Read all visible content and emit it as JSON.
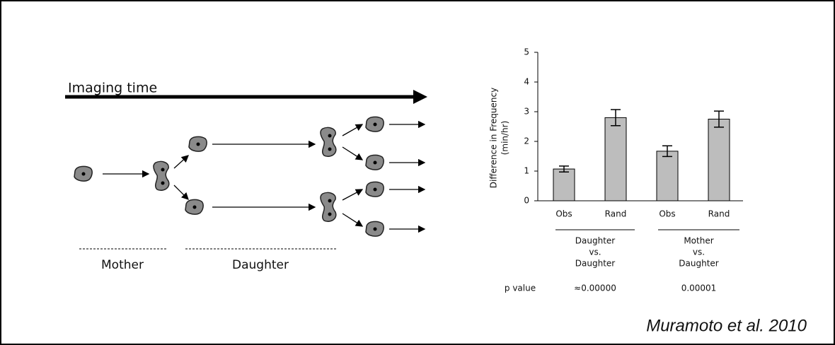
{
  "diagram": {
    "arrow_label": "Imaging time",
    "phases": [
      "Mother",
      "Daughter"
    ]
  },
  "chart_data": {
    "type": "bar",
    "ylabel": [
      "Difference in Frequency",
      "(min/hr)"
    ],
    "categories": [
      "Obs",
      "Rand",
      "Obs",
      "Rand"
    ],
    "values": [
      1.07,
      2.8,
      1.67,
      2.75
    ],
    "errors": [
      0.1,
      0.27,
      0.18,
      0.27
    ],
    "color": "#bdbdbd",
    "ylim": [
      0,
      5
    ],
    "yticks": [
      0,
      1,
      2,
      3,
      4,
      5
    ],
    "groups": [
      [
        "Daughter",
        "vs.",
        "Daughter"
      ],
      [
        "Mother",
        "vs.",
        "Daughter"
      ]
    ],
    "p_label": "p value",
    "p_values": [
      "≈0.00000",
      "0.00001"
    ]
  },
  "citation": "Muramoto et al. 2010"
}
